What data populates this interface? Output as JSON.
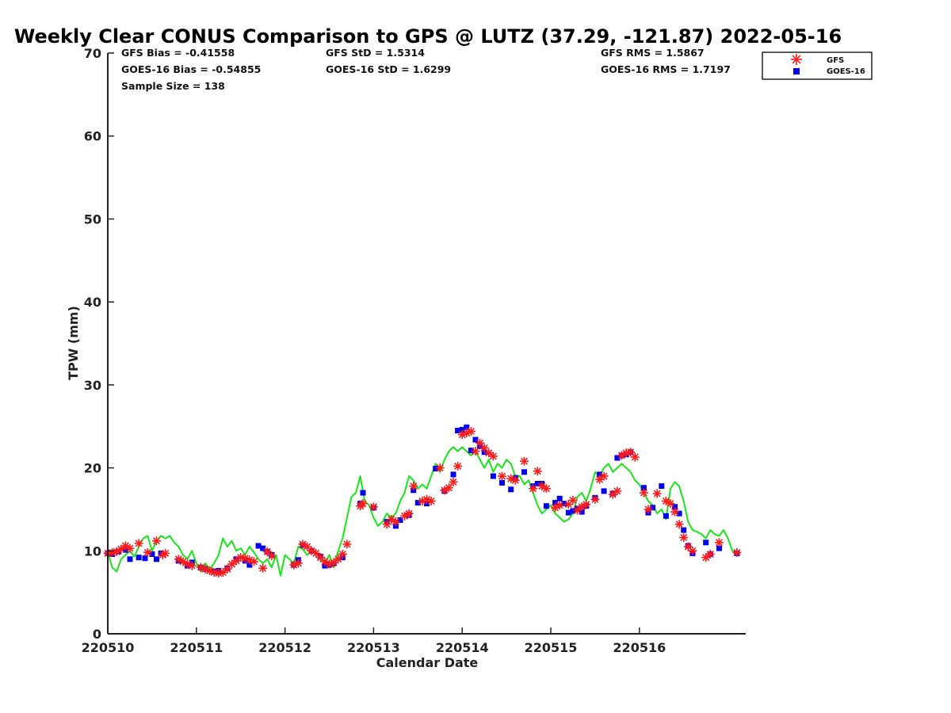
{
  "chart_data": {
    "type": "scatter",
    "title": "Weekly Clear CONUS Comparison to GPS @ LUTZ (37.29, -121.87) 2022-05-16",
    "xlabel": "Calendar Date",
    "ylabel": "TPW (mm)",
    "xlim": [
      220510,
      220517.2
    ],
    "ylim": [
      0,
      70
    ],
    "x_ticks": [
      {
        "x": 220510,
        "label": "220510"
      },
      {
        "x": 220511,
        "label": "220511"
      },
      {
        "x": 220512,
        "label": "220512"
      },
      {
        "x": 220513,
        "label": "220513"
      },
      {
        "x": 220514,
        "label": "220514"
      },
      {
        "x": 220515,
        "label": "220515"
      },
      {
        "x": 220516,
        "label": "220516"
      }
    ],
    "y_ticks": [
      0,
      10,
      20,
      30,
      40,
      50,
      60,
      70
    ],
    "grid": false,
    "legend_position": "top-right",
    "colors": {
      "gfs": "#ff1a1a",
      "goes16": "#0000ee",
      "gps": "#19e619",
      "axis": "#222222"
    },
    "stats": {
      "gfs_bias": "GFS Bias = -0.41558",
      "goes_bias": "GOES-16 Bias = -0.54855",
      "sample_size": "Sample Size = 138",
      "gfs_std": "GFS StD = 1.5314",
      "goes_std": "GOES-16 StD = 1.6299",
      "gfs_rms": "GFS RMS = 1.5867",
      "goes_rms": "GOES-16 RMS = 1.7197"
    },
    "series": [
      {
        "name": "GFS",
        "marker": "asterisk",
        "x": [
          220510.0,
          220510.05,
          220510.1,
          220510.15,
          220510.2,
          220510.25,
          220510.35,
          220510.45,
          220510.55,
          220510.62,
          220510.65,
          220510.8,
          220510.85,
          220510.9,
          220510.95,
          220511.05,
          220511.1,
          220511.15,
          220511.2,
          220511.25,
          220511.3,
          220511.35,
          220511.4,
          220511.45,
          220511.5,
          220511.55,
          220511.6,
          220511.65,
          220511.75,
          220511.8,
          220511.85,
          220512.1,
          220512.15,
          220512.2,
          220512.25,
          220512.3,
          220512.35,
          220512.4,
          220512.45,
          220512.5,
          220512.55,
          220512.6,
          220512.65,
          220512.7,
          220512.85,
          220512.88,
          220513.0,
          220513.15,
          220513.2,
          220513.25,
          220513.35,
          220513.4,
          220513.45,
          220513.55,
          220513.6,
          220513.65,
          220513.75,
          220513.8,
          220513.85,
          220513.9,
          220513.95,
          220514.0,
          220514.05,
          220514.1,
          220514.15,
          220514.2,
          220514.25,
          220514.3,
          220514.35,
          220514.45,
          220514.55,
          220514.6,
          220514.7,
          220514.8,
          220514.85,
          220514.9,
          220514.95,
          220515.05,
          220515.1,
          220515.2,
          220515.25,
          220515.3,
          220515.35,
          220515.4,
          220515.5,
          220515.55,
          220515.6,
          220515.7,
          220515.75,
          220515.8,
          220515.85,
          220515.9,
          220515.95,
          220516.05,
          220516.1,
          220516.2,
          220516.3,
          220516.35,
          220516.4,
          220516.45,
          220516.5,
          220516.55,
          220516.6,
          220516.75,
          220516.8,
          220516.9,
          220517.1
        ],
        "y": [
          9.7,
          9.8,
          9.9,
          10.2,
          10.6,
          10.3,
          10.9,
          9.8,
          11.2,
          9.5,
          9.7,
          9.0,
          8.7,
          8.4,
          8.2,
          8.0,
          7.8,
          7.6,
          7.4,
          7.3,
          7.4,
          7.8,
          8.4,
          8.8,
          9.2,
          9.1,
          8.9,
          8.7,
          7.9,
          9.9,
          9.4,
          8.3,
          8.5,
          10.8,
          10.5,
          10.0,
          9.7,
          9.2,
          8.7,
          8.4,
          8.6,
          9.0,
          9.6,
          10.8,
          15.4,
          15.7,
          15.3,
          13.2,
          13.8,
          13.5,
          14.2,
          14.5,
          17.8,
          16.0,
          16.2,
          16.0,
          20.0,
          17.3,
          17.6,
          18.3,
          20.2,
          24.0,
          24.2,
          24.4,
          22.0,
          23.0,
          22.4,
          21.8,
          21.4,
          19.0,
          18.7,
          18.5,
          20.8,
          17.5,
          19.6,
          17.8,
          17.5,
          15.2,
          15.5,
          15.6,
          16.1,
          14.9,
          15.3,
          15.6,
          16.2,
          18.6,
          19.0,
          16.8,
          17.2,
          21.5,
          21.8,
          21.9,
          21.3,
          17.0,
          15.0,
          16.9,
          16.0,
          15.7,
          14.7,
          13.2,
          11.6,
          10.5,
          10.0,
          9.2,
          9.6,
          11.0,
          9.8
        ]
      },
      {
        "name": "GOES-16",
        "marker": "square",
        "x": [
          220510.0,
          220510.05,
          220510.12,
          220510.2,
          220510.25,
          220510.35,
          220510.42,
          220510.5,
          220510.55,
          220510.6,
          220510.8,
          220510.9,
          220510.95,
          220511.05,
          220511.1,
          220511.2,
          220511.25,
          220511.35,
          220511.45,
          220511.55,
          220511.6,
          220511.7,
          220511.75,
          220511.8,
          220511.85,
          220512.1,
          220512.15,
          220512.2,
          220512.3,
          220512.4,
          220512.45,
          220512.5,
          220512.55,
          220512.65,
          220512.85,
          220512.88,
          220513.0,
          220513.15,
          220513.25,
          220513.3,
          220513.4,
          220513.45,
          220513.5,
          220513.6,
          220513.7,
          220513.8,
          220513.9,
          220513.95,
          220514.0,
          220514.05,
          220514.1,
          220514.15,
          220514.2,
          220514.25,
          220514.35,
          220514.45,
          220514.55,
          220514.6,
          220514.7,
          220514.8,
          220514.85,
          220514.9,
          220514.95,
          220515.05,
          220515.1,
          220515.15,
          220515.2,
          220515.25,
          220515.3,
          220515.35,
          220515.4,
          220515.5,
          220515.55,
          220515.6,
          220515.7,
          220515.75,
          220515.8,
          220515.85,
          220515.9,
          220516.05,
          220516.1,
          220516.15,
          220516.25,
          220516.3,
          220516.4,
          220516.45,
          220516.5,
          220516.55,
          220516.6,
          220516.75,
          220516.8,
          220516.9,
          220517.1
        ],
        "y": [
          9.7,
          9.6,
          9.9,
          10.1,
          9.0,
          9.2,
          9.1,
          9.6,
          9.0,
          9.7,
          8.8,
          8.2,
          8.6,
          8.0,
          7.8,
          7.5,
          7.6,
          7.9,
          9.0,
          8.8,
          8.3,
          10.6,
          10.3,
          9.9,
          9.5,
          8.3,
          8.9,
          10.7,
          10.0,
          9.3,
          8.2,
          8.3,
          8.5,
          9.2,
          15.7,
          17.0,
          15.2,
          13.5,
          13.0,
          13.7,
          14.3,
          17.3,
          15.8,
          15.7,
          19.9,
          17.2,
          19.2,
          24.5,
          24.6,
          24.9,
          22.1,
          23.4,
          22.6,
          21.9,
          19.0,
          18.2,
          17.4,
          18.8,
          19.5,
          17.8,
          18.1,
          18.1,
          15.4,
          15.8,
          16.3,
          15.7,
          14.6,
          14.8,
          15.1,
          14.7,
          15.4,
          16.4,
          19.2,
          17.2,
          16.9,
          21.2,
          21.5,
          21.6,
          21.9,
          17.6,
          14.6,
          15.2,
          17.8,
          14.2,
          15.3,
          14.5,
          12.5,
          10.6,
          9.7,
          11.0,
          9.6,
          10.3,
          9.7
        ]
      },
      {
        "name": "GPS",
        "marker": "line",
        "x": [
          220510.0,
          220510.05,
          220510.1,
          220510.15,
          220510.2,
          220510.25,
          220510.3,
          220510.35,
          220510.4,
          220510.45,
          220510.5,
          220510.55,
          220510.6,
          220510.65,
          220510.7,
          220510.75,
          220510.8,
          220510.85,
          220510.9,
          220510.95,
          220511.0,
          220511.05,
          220511.1,
          220511.15,
          220511.2,
          220511.25,
          220511.3,
          220511.35,
          220511.4,
          220511.45,
          220511.5,
          220511.55,
          220511.6,
          220511.65,
          220511.7,
          220511.75,
          220511.8,
          220511.85,
          220511.9,
          220511.95,
          220512.0,
          220512.05,
          220512.1,
          220512.15,
          220512.2,
          220512.25,
          220512.3,
          220512.35,
          220512.4,
          220512.45,
          220512.5,
          220512.55,
          220512.6,
          220512.65,
          220512.7,
          220512.75,
          220512.8,
          220512.85,
          220512.9,
          220512.95,
          220513.0,
          220513.05,
          220513.1,
          220513.15,
          220513.2,
          220513.25,
          220513.3,
          220513.35,
          220513.4,
          220513.45,
          220513.5,
          220513.55,
          220513.6,
          220513.65,
          220513.7,
          220513.75,
          220513.8,
          220513.85,
          220513.9,
          220513.95,
          220514.0,
          220514.05,
          220514.1,
          220514.15,
          220514.2,
          220514.25,
          220514.3,
          220514.35,
          220514.4,
          220514.45,
          220514.5,
          220514.55,
          220514.6,
          220514.65,
          220514.7,
          220514.75,
          220514.8,
          220514.85,
          220514.9,
          220514.95,
          220515.0,
          220515.05,
          220515.1,
          220515.15,
          220515.2,
          220515.25,
          220515.3,
          220515.35,
          220515.4,
          220515.45,
          220515.5,
          220515.55,
          220515.6,
          220515.65,
          220515.7,
          220515.75,
          220515.8,
          220515.85,
          220515.9,
          220515.95,
          220516.0,
          220516.05,
          220516.1,
          220516.15,
          220516.2,
          220516.25,
          220516.3,
          220516.35,
          220516.4,
          220516.45,
          220516.5,
          220516.55,
          220516.6,
          220516.65,
          220516.7,
          220516.75,
          220516.8,
          220516.85,
          220516.9,
          220516.95,
          220517.0,
          220517.05,
          220517.1
        ],
        "y": [
          9.8,
          8.0,
          7.5,
          9.0,
          9.5,
          10.0,
          9.3,
          10.5,
          11.5,
          11.8,
          10.0,
          11.2,
          11.8,
          11.5,
          11.8,
          11.0,
          10.5,
          9.5,
          9.0,
          10.0,
          8.5,
          7.5,
          8.5,
          7.8,
          8.5,
          9.5,
          11.5,
          10.5,
          11.2,
          10.0,
          10.3,
          9.5,
          10.5,
          9.8,
          9.0,
          8.5,
          9.0,
          8.0,
          9.5,
          7.0,
          9.5,
          9.0,
          8.5,
          10.5,
          10.2,
          9.5,
          10.0,
          9.8,
          9.0,
          8.5,
          9.5,
          8.0,
          10.0,
          11.5,
          14.0,
          16.5,
          17.0,
          19.0,
          16.0,
          15.5,
          14.0,
          13.0,
          13.5,
          14.5,
          14.0,
          14.5,
          16.0,
          17.0,
          19.0,
          18.5,
          17.5,
          18.0,
          17.5,
          19.0,
          20.5,
          19.5,
          21.0,
          22.0,
          22.5,
          22.0,
          22.5,
          22.0,
          21.5,
          22.0,
          21.0,
          20.0,
          21.0,
          19.5,
          20.5,
          20.0,
          21.0,
          20.5,
          19.0,
          19.0,
          18.0,
          18.5,
          17.0,
          15.5,
          14.5,
          15.0,
          15.5,
          14.5,
          14.0,
          13.5,
          13.8,
          14.5,
          16.5,
          17.0,
          16.0,
          17.5,
          19.5,
          19.0,
          20.0,
          20.5,
          19.5,
          20.0,
          20.5,
          20.0,
          19.5,
          18.5,
          18.0,
          17.0,
          16.0,
          15.5,
          14.5,
          15.0,
          13.8,
          17.5,
          18.3,
          17.8,
          16.0,
          13.5,
          12.5,
          12.3,
          12.0,
          11.5,
          12.5,
          12.0,
          11.8,
          12.5,
          11.5,
          10.0,
          9.8
        ]
      }
    ],
    "legend": [
      {
        "label": "GFS",
        "marker": "asterisk"
      },
      {
        "label": "GOES-16",
        "marker": "square"
      }
    ]
  }
}
